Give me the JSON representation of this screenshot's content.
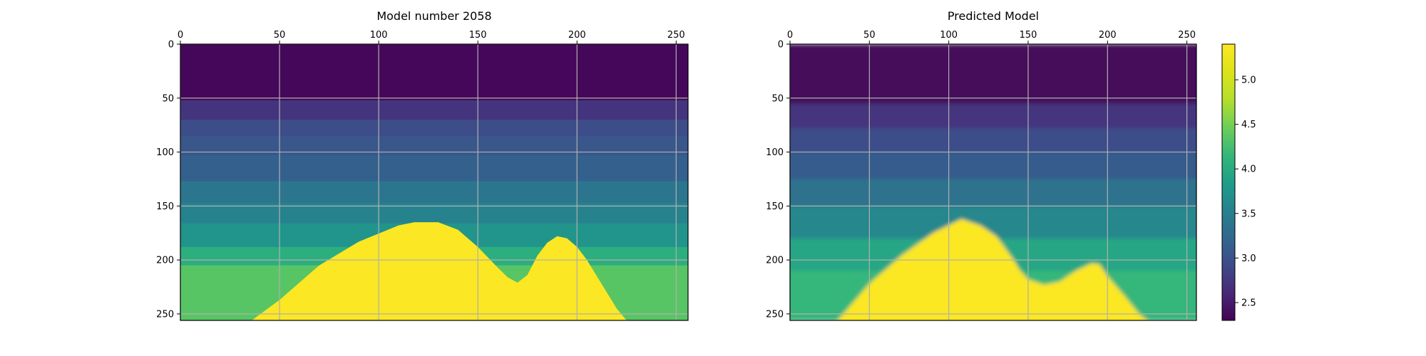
{
  "chart_data": [
    {
      "type": "heatmap",
      "title": "Model number 2058",
      "xlim": [
        0,
        256
      ],
      "ylim": [
        256,
        0
      ],
      "x_ticks": [
        0,
        50,
        100,
        150,
        200,
        250
      ],
      "y_ticks": [
        0,
        50,
        100,
        150,
        200,
        250
      ],
      "x_tick_labels": [
        "0",
        "50",
        "100",
        "150",
        "200",
        "250"
      ],
      "y_tick_labels": [
        "0",
        "50",
        "100",
        "150",
        "200",
        "250"
      ],
      "x_axis_position": "top",
      "grid": true,
      "colormap": "viridis",
      "rendering": "sharp",
      "layers": [
        {
          "top": 0,
          "value": 2.35
        },
        {
          "top": 52,
          "value": 2.72
        },
        {
          "top": 70,
          "value": 2.95
        },
        {
          "top": 85,
          "value": 3.05
        },
        {
          "top": 103,
          "value": 3.15
        },
        {
          "top": 127,
          "value": 3.4
        },
        {
          "top": 147,
          "value": 3.55
        },
        {
          "top": 166,
          "value": 3.75
        },
        {
          "top": 188,
          "value": 4.05
        },
        {
          "top": 205,
          "value": 4.35
        }
      ],
      "salt_body": {
        "value": 5.38,
        "boundary_x": [
          36,
          50,
          70,
          90,
          110,
          118,
          130,
          140,
          150,
          160,
          165,
          170,
          175,
          180,
          185,
          190,
          195,
          200,
          205,
          210,
          215,
          220,
          225
        ],
        "boundary_y": [
          256,
          237,
          205,
          183,
          168,
          165,
          165,
          172,
          188,
          207,
          216,
          221,
          214,
          196,
          184,
          178,
          180,
          188,
          200,
          215,
          230,
          245,
          256
        ]
      }
    },
    {
      "type": "heatmap",
      "title": "Predicted Model",
      "xlim": [
        0,
        256
      ],
      "ylim": [
        256,
        0
      ],
      "x_ticks": [
        0,
        50,
        100,
        150,
        200,
        250
      ],
      "y_ticks": [
        0,
        50,
        100,
        150,
        200,
        250
      ],
      "x_tick_labels": [
        "0",
        "50",
        "100",
        "150",
        "200",
        "250"
      ],
      "y_tick_labels": [
        "0",
        "50",
        "100",
        "150",
        "200",
        "250"
      ],
      "x_axis_position": "top",
      "grid": true,
      "colormap": "viridis",
      "rendering": "smooth",
      "layers": [
        {
          "top": 0,
          "value": 2.35
        },
        {
          "top": 55,
          "value": 2.72
        },
        {
          "top": 78,
          "value": 2.95
        },
        {
          "top": 100,
          "value": 3.1
        },
        {
          "top": 125,
          "value": 3.35
        },
        {
          "top": 150,
          "value": 3.6
        },
        {
          "top": 180,
          "value": 3.95
        },
        {
          "top": 210,
          "value": 4.15
        }
      ],
      "salt_body": {
        "value": 5.38,
        "boundary_x": [
          30,
          50,
          70,
          90,
          108,
          120,
          130,
          140,
          145,
          150,
          160,
          170,
          180,
          190,
          195,
          200,
          210,
          220,
          225
        ],
        "boundary_y": [
          256,
          222,
          196,
          175,
          162,
          168,
          178,
          198,
          210,
          218,
          223,
          220,
          210,
          203,
          204,
          215,
          232,
          250,
          256
        ]
      }
    }
  ],
  "colorbar": {
    "vmin": 2.3,
    "vmax": 5.4,
    "ticks": [
      2.5,
      3.0,
      3.5,
      4.0,
      4.5,
      5.0
    ],
    "tick_labels": [
      "2.5",
      "3.0",
      "3.5",
      "4.0",
      "4.5",
      "5.0"
    ]
  }
}
